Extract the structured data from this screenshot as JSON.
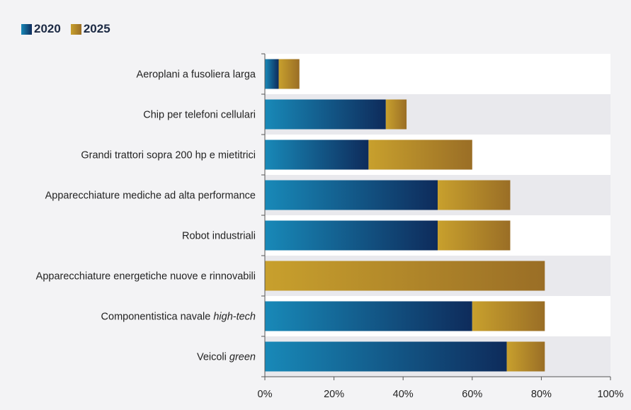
{
  "legend": {
    "label_2020": "2020",
    "label_2025": "2025"
  },
  "colors": {
    "s2020_start": "#1889b8",
    "s2020_end": "#0e2b5b",
    "s2025_start": "#c8a02d",
    "s2025_end": "#9a6e26",
    "band": "#e9e9ed",
    "background": "#f3f3f5",
    "axis": "#555555"
  },
  "chart_data": {
    "type": "bar",
    "orientation": "horizontal",
    "stacked": true,
    "title": "",
    "xlabel": "",
    "ylabel": "",
    "xlim": [
      0,
      100
    ],
    "x_ticks": [
      "0%",
      "20%",
      "40%",
      "60%",
      "80%",
      "100%"
    ],
    "categories": [
      "Aeroplani a fusoliera larga",
      "Chip per telefoni cellulari",
      "Grandi trattori sopra 200 hp e mietitrici",
      "Apparecchiature mediche ad alta performance",
      "Robot industriali",
      "Apparecchiature energetiche nuove e rinnovabili",
      "Componentistica navale high-tech",
      "Veicoli green"
    ],
    "series": [
      {
        "name": "2020",
        "values": [
          4,
          35,
          30,
          50,
          50,
          0,
          60,
          70
        ]
      },
      {
        "name": "2025",
        "values": [
          6,
          6,
          30,
          21,
          21,
          81,
          21,
          11
        ]
      }
    ],
    "grid": false,
    "legend_position": "top-left"
  }
}
